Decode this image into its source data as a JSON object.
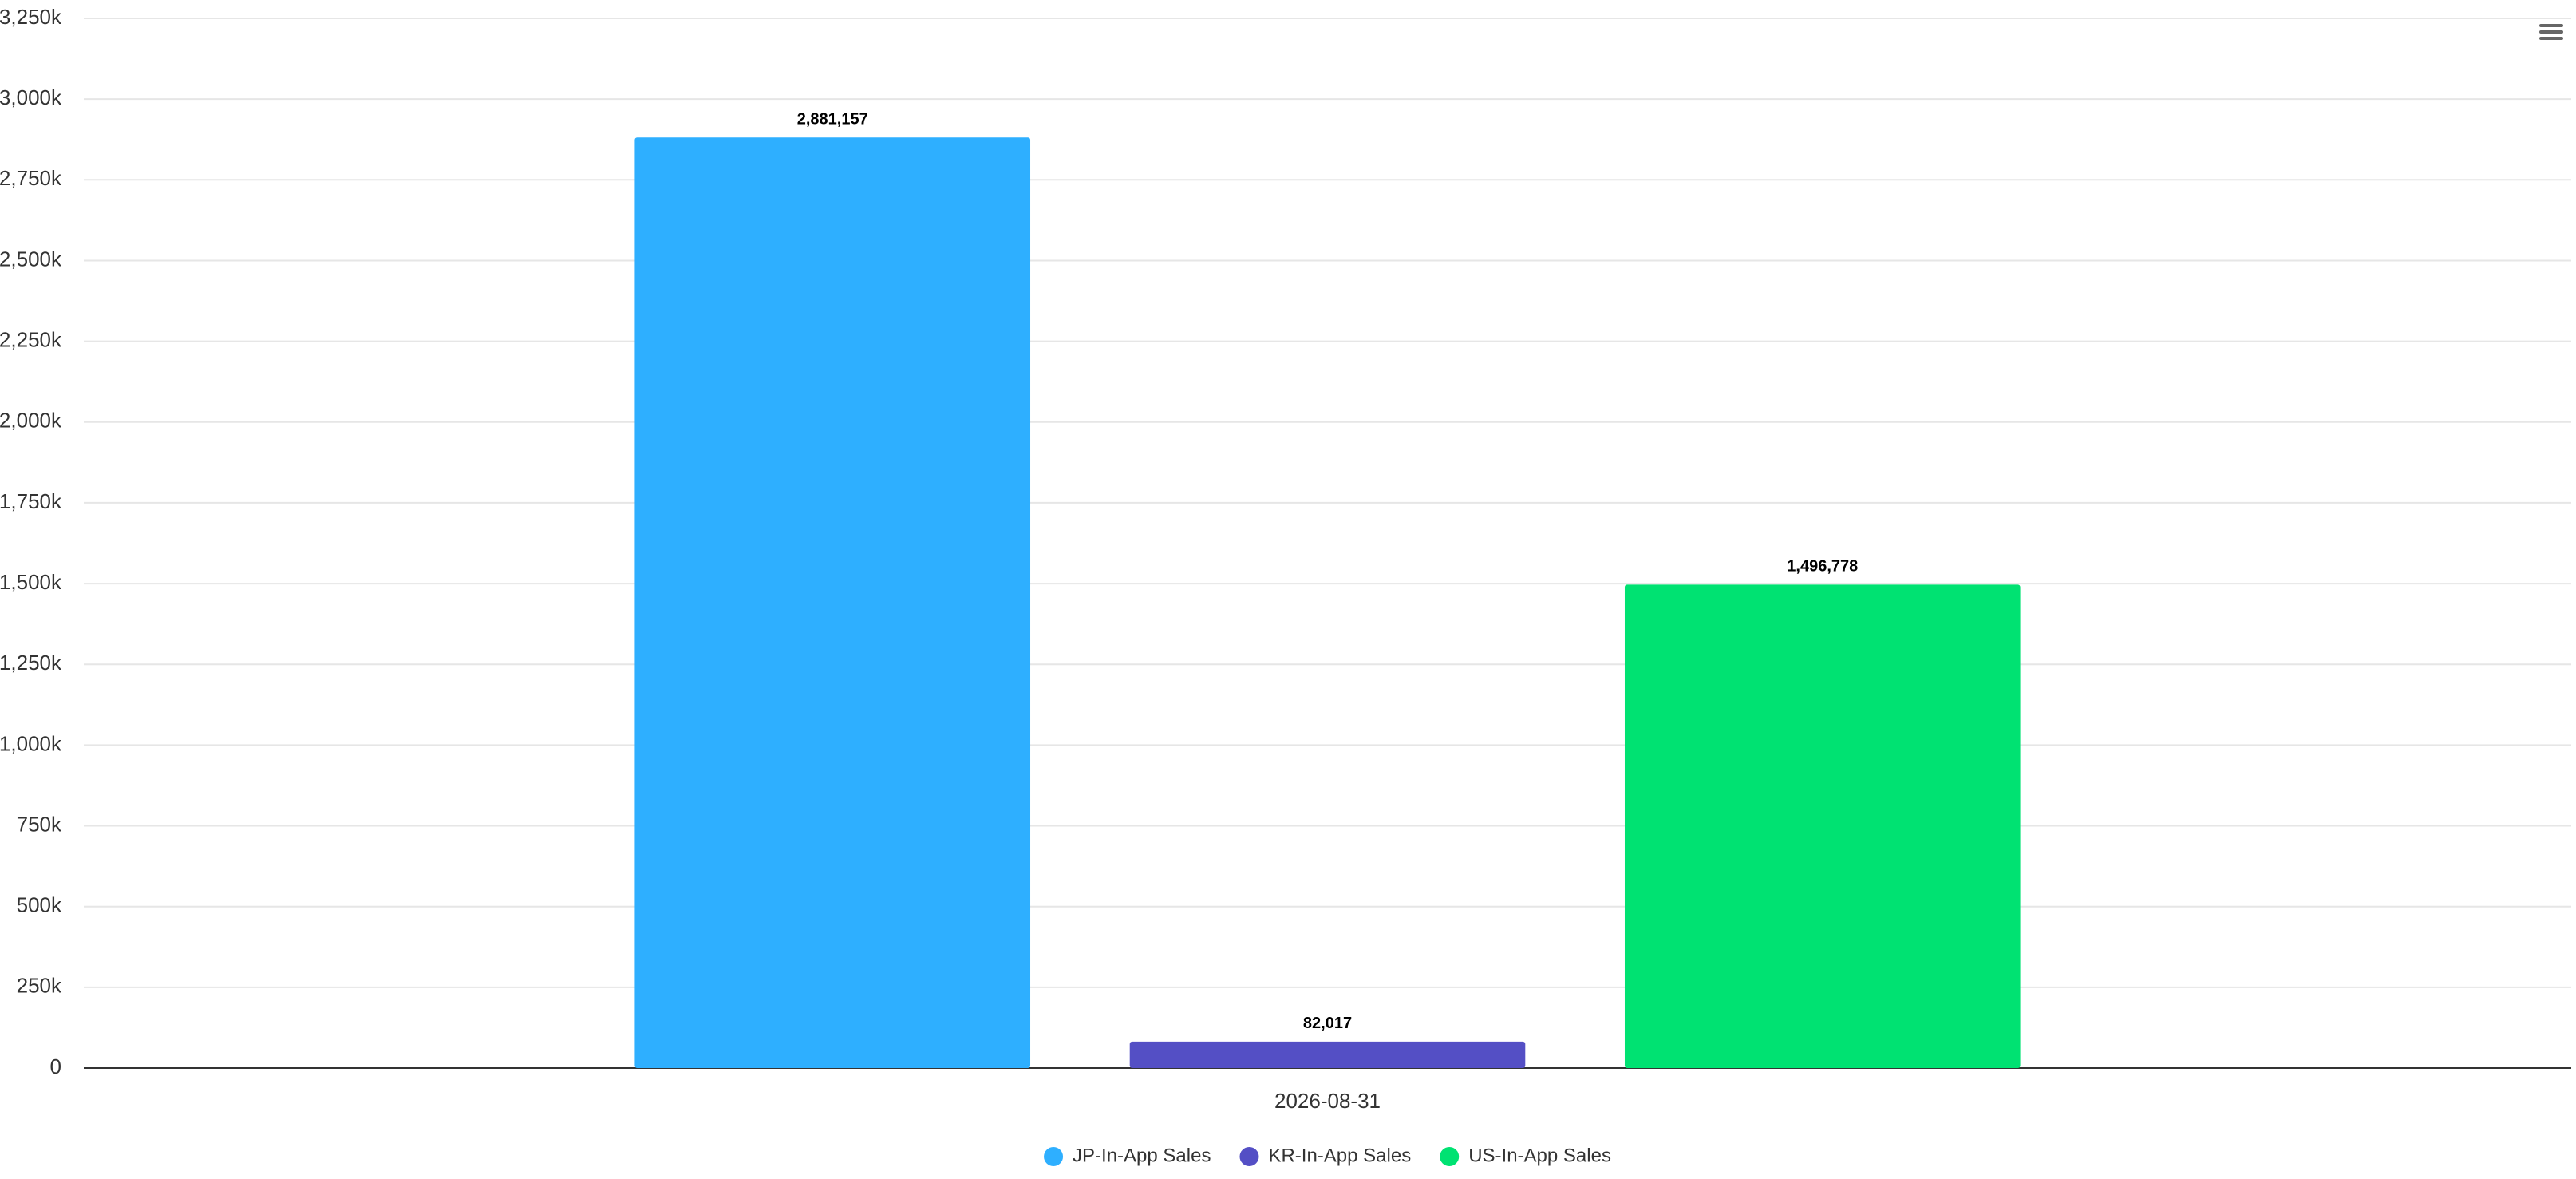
{
  "chart_data": {
    "type": "bar",
    "categories": [
      "2026-08-31"
    ],
    "series": [
      {
        "name": "JP-In-App Sales",
        "color": "#2eafff",
        "values": [
          2881157
        ],
        "value_labels": [
          "2,881,157"
        ]
      },
      {
        "name": "KR-In-App Sales",
        "color": "#544fc5",
        "values": [
          82017
        ],
        "value_labels": [
          "82,017"
        ]
      },
      {
        "name": "US-In-App Sales",
        "color": "#00e272",
        "values": [
          1496778
        ],
        "value_labels": [
          "1,496,778"
        ]
      }
    ],
    "ylim": [
      0,
      3250000
    ],
    "yticks": [
      0,
      {
        "value": 250000,
        "label": "250k"
      },
      {
        "value": 500000,
        "label": "500k"
      },
      {
        "value": 750000,
        "label": "750k"
      },
      {
        "value": 1000000,
        "label": "1,000k"
      },
      {
        "value": 1250000,
        "label": "1,250k"
      },
      {
        "value": 1500000,
        "label": "1,500k"
      },
      {
        "value": 1750000,
        "label": "1,750k"
      },
      {
        "value": 2000000,
        "label": "2,000k"
      },
      {
        "value": 2250000,
        "label": "2,250k"
      },
      {
        "value": 2500000,
        "label": "2,500k"
      },
      {
        "value": 2750000,
        "label": "2,750k"
      },
      {
        "value": 3000000,
        "label": "3,000k"
      },
      {
        "value": 3250000,
        "label": "3,250k"
      }
    ],
    "grid": true,
    "legend": "bottom"
  }
}
